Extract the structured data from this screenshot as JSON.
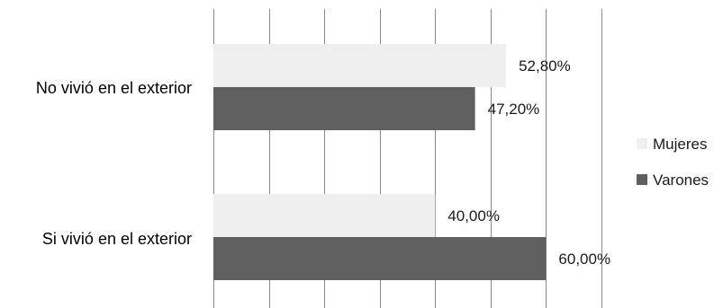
{
  "chart_data": {
    "type": "bar",
    "orientation": "horizontal",
    "categories": [
      "No vivió en el exterior",
      "Si vivió en el exterior"
    ],
    "series": [
      {
        "name": "Mujeres",
        "values": [
          52.8,
          40.0
        ],
        "labels": [
          "52,80%",
          "40,00%"
        ],
        "color": "#efefef"
      },
      {
        "name": "Varones",
        "values": [
          47.2,
          60.0
        ],
        "labels": [
          "47,20%",
          "60,00%"
        ],
        "color": "#5f5f5f"
      }
    ],
    "xlim": [
      0,
      70
    ],
    "x_major_step": 10,
    "grid": true,
    "legend_position": "right",
    "title": "",
    "xlabel": "",
    "ylabel": ""
  }
}
